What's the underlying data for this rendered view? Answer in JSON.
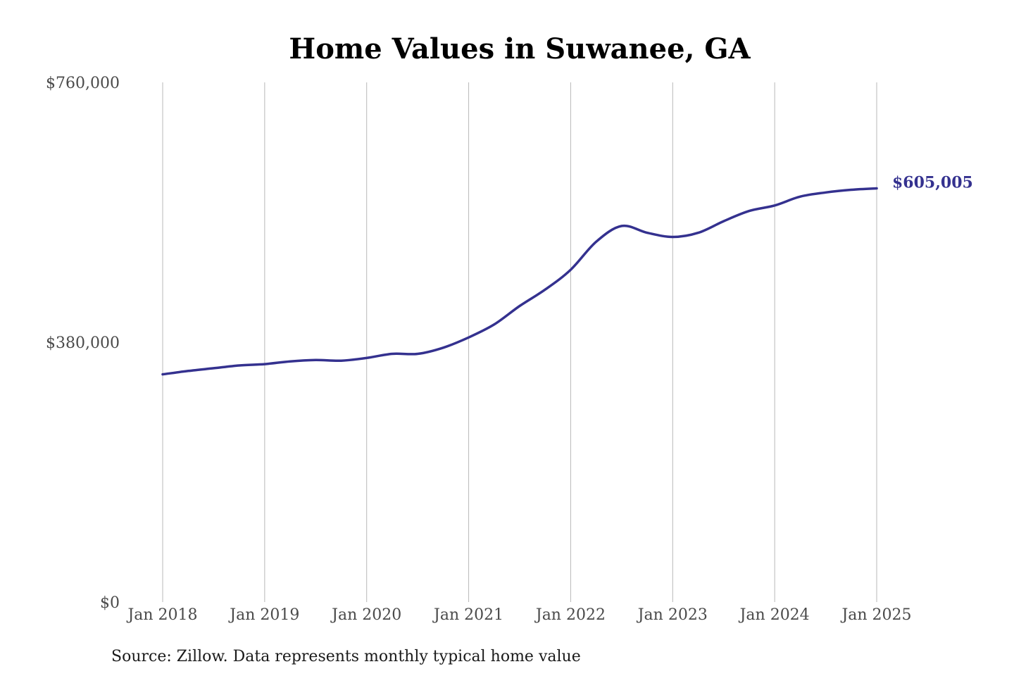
{
  "colors": {
    "series": "#34318f",
    "grid": "#b8b8b8",
    "title": "#000000",
    "tick_text": "#4a4a4a"
  },
  "chart_data": {
    "type": "line",
    "title": "Home Values in Suwanee, GA",
    "xlabel": "",
    "ylabel": "",
    "ylim": [
      0,
      760000
    ],
    "grid": "vertical",
    "yticks": [
      0,
      380000,
      760000
    ],
    "ytick_labels": [
      "$0",
      "$380,000",
      "$760,000"
    ],
    "xticks": [
      "2018-01",
      "2019-01",
      "2020-01",
      "2021-01",
      "2022-01",
      "2023-01",
      "2024-01",
      "2025-01"
    ],
    "xtick_labels": [
      "Jan 2018",
      "Jan 2019",
      "Jan 2020",
      "Jan 2021",
      "Jan 2022",
      "Jan 2023",
      "Jan 2024",
      "Jan 2025"
    ],
    "end_label": "$605,005",
    "source": "Source: Zillow. Data represents monthly typical home value",
    "series": [
      {
        "points": [
          [
            "2018-01",
            333000
          ],
          [
            "2018-04",
            338000
          ],
          [
            "2018-07",
            342000
          ],
          [
            "2018-10",
            346000
          ],
          [
            "2019-01",
            348000
          ],
          [
            "2019-04",
            352000
          ],
          [
            "2019-07",
            354000
          ],
          [
            "2019-10",
            353000
          ],
          [
            "2020-01",
            357000
          ],
          [
            "2020-04",
            363000
          ],
          [
            "2020-07",
            363000
          ],
          [
            "2020-10",
            372000
          ],
          [
            "2021-01",
            387000
          ],
          [
            "2021-04",
            406000
          ],
          [
            "2021-07",
            433000
          ],
          [
            "2021-10",
            457000
          ],
          [
            "2022-01",
            486000
          ],
          [
            "2022-04",
            527000
          ],
          [
            "2022-07",
            550000
          ],
          [
            "2022-10",
            540000
          ],
          [
            "2023-01",
            534000
          ],
          [
            "2023-04",
            540000
          ],
          [
            "2023-07",
            557000
          ],
          [
            "2023-10",
            572000
          ],
          [
            "2024-01",
            580000
          ],
          [
            "2024-04",
            593000
          ],
          [
            "2024-07",
            599000
          ],
          [
            "2024-10",
            603000
          ],
          [
            "2025-01",
            605005
          ]
        ]
      }
    ]
  }
}
